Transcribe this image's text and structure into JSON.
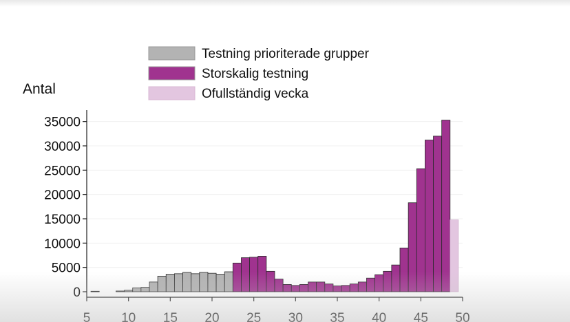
{
  "chart_data": {
    "type": "bar",
    "ylabel": "Antal",
    "xlabel": "",
    "xlim": [
      5,
      50
    ],
    "ylim": [
      0,
      37500
    ],
    "xticks": [
      5,
      10,
      15,
      20,
      25,
      30,
      35,
      40,
      45,
      50
    ],
    "yticks": [
      0,
      5000,
      10000,
      15000,
      20000,
      25000,
      30000,
      35000
    ],
    "legend_position": "top-center",
    "series": [
      {
        "name": "Testning prioriterade grupper",
        "color": "#b3b3b3",
        "x": [
          6,
          9,
          10,
          11,
          12,
          13,
          14,
          15,
          16,
          17,
          18,
          19,
          20,
          21,
          22
        ],
        "values": [
          100,
          150,
          300,
          800,
          900,
          2000,
          3200,
          3600,
          3700,
          4000,
          3700,
          4000,
          3800,
          3600,
          4100
        ]
      },
      {
        "name": "Storskalig testning",
        "color": "#a0338f",
        "x": [
          23,
          24,
          25,
          26,
          27,
          28,
          29,
          30,
          31,
          32,
          33,
          34,
          35,
          36,
          37,
          38,
          39,
          40,
          41,
          42,
          43,
          44,
          45,
          46,
          47,
          48
        ],
        "values": [
          5900,
          7000,
          7100,
          7300,
          4200,
          2600,
          1500,
          1300,
          1500,
          2000,
          2000,
          1600,
          1200,
          1300,
          1600,
          2000,
          2800,
          3500,
          4200,
          5500,
          9000,
          18300,
          25300,
          31200,
          32000,
          35300
        ]
      },
      {
        "name": "Ofullständig vecka",
        "color": "#e3c6e0",
        "x": [
          49
        ],
        "values": [
          14800
        ]
      }
    ]
  }
}
